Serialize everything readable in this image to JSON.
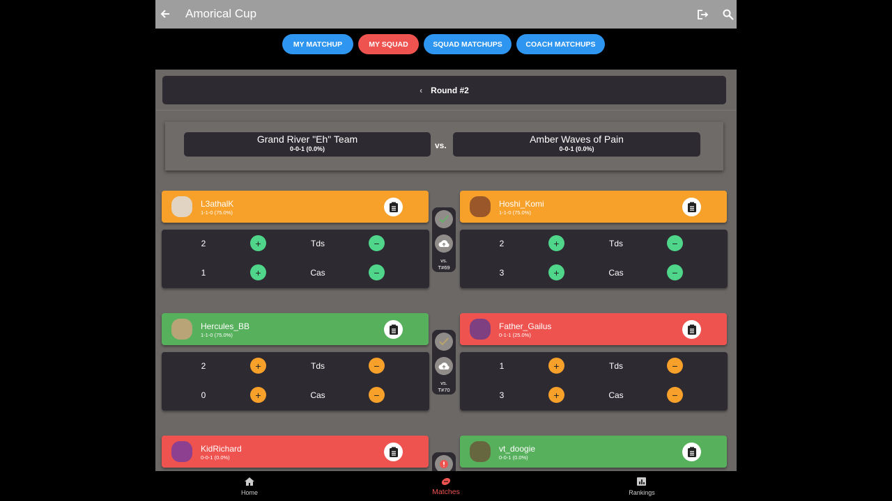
{
  "header": {
    "title": "Amorical Cup"
  },
  "tabs": [
    "MY MATCHUP",
    "MY SQUAD",
    "SQUAD MATCHUPS",
    "COACH MATCHUPS"
  ],
  "round": "Round #2",
  "teams": {
    "home": {
      "name": "Grand River \"Eh\" Team",
      "record": "0-0-1 (0.0%)"
    },
    "vs": "vs.",
    "away": {
      "name": "Amber Waves of Pain",
      "record": "0-0-1 (0.0%)"
    }
  },
  "matchups": [
    {
      "left": {
        "name": "L3athalK",
        "record": "1-1-0 (75.0%)",
        "stats": [
          {
            "value": 2,
            "label": "Tds"
          },
          {
            "value": 1,
            "label": "Cas"
          }
        ]
      },
      "right": {
        "name": "Hoshi_Komi",
        "record": "1-1-0 (75.0%)",
        "stats": [
          {
            "value": 2,
            "label": "Tds"
          },
          {
            "value": 3,
            "label": "Cas"
          }
        ]
      },
      "vs": "vs.",
      "table": "T#69"
    },
    {
      "left": {
        "name": "Hercules_BB",
        "record": "1-1-0 (75.0%)",
        "stats": [
          {
            "value": 2,
            "label": "Tds"
          },
          {
            "value": 0,
            "label": "Cas"
          }
        ]
      },
      "right": {
        "name": "Father_Gailus",
        "record": "0-1-1 (25.0%)",
        "stats": [
          {
            "value": 1,
            "label": "Tds"
          },
          {
            "value": 3,
            "label": "Cas"
          }
        ]
      },
      "vs": "vs.",
      "table": "T#70"
    },
    {
      "left": {
        "name": "KidRichard",
        "record": "0-0-1 (0.0%)"
      },
      "right": {
        "name": "vt_doogie",
        "record": "0-0-1 (0.0%)"
      }
    }
  ],
  "nav": [
    "Home",
    "Matches",
    "Rankings"
  ]
}
